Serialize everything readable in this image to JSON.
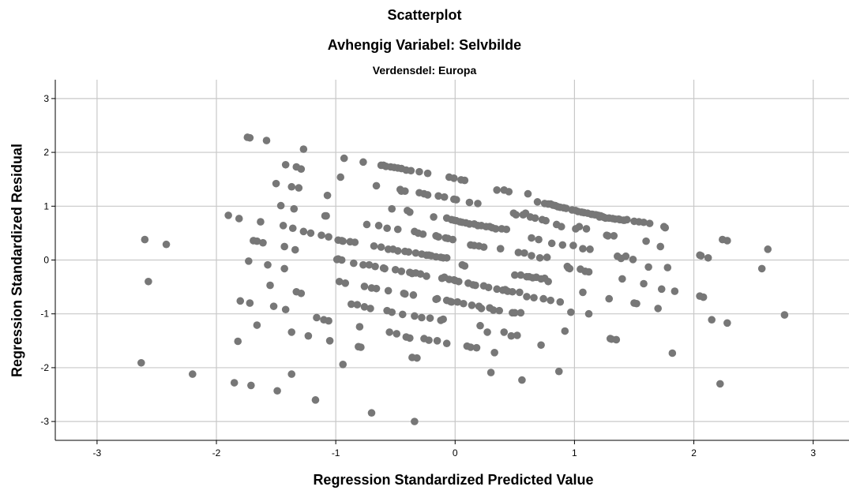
{
  "chart_data": {
    "type": "scatter",
    "title": "Scatterplot",
    "subtitle": "Avhengig Variabel: Selvbilde",
    "subtitle2": "Verdensdel: Europa",
    "xlabel": "Regression Standardized Predicted Value",
    "ylabel": "Regression Standardized Residual",
    "xlim": [
      -3.35,
      3.3
    ],
    "ylim": [
      -3.35,
      3.35
    ],
    "xticks": [
      -3,
      -2,
      -1,
      0,
      1,
      2,
      3
    ],
    "yticks": [
      -3,
      -2,
      -1,
      0,
      1,
      2,
      3
    ],
    "grid": true,
    "point_color": "#777777",
    "gridline_color": "#c8c8c8",
    "points": [
      [
        -2.63,
        -1.91
      ],
      [
        -2.6,
        0.38
      ],
      [
        -2.57,
        -0.4
      ],
      [
        -2.42,
        0.29
      ],
      [
        -2.2,
        -2.12
      ],
      [
        -1.9,
        0.83
      ],
      [
        -1.85,
        -2.28
      ],
      [
        -1.82,
        -1.51
      ],
      [
        -1.81,
        0.77
      ],
      [
        -1.8,
        -0.76
      ],
      [
        -1.74,
        2.28
      ],
      [
        -1.72,
        2.27
      ],
      [
        -1.73,
        -0.02
      ],
      [
        -1.72,
        -0.8
      ],
      [
        -1.71,
        -2.33
      ],
      [
        -1.69,
        0.36
      ],
      [
        -1.66,
        0.35
      ],
      [
        -1.66,
        -1.21
      ],
      [
        -1.63,
        0.71
      ],
      [
        -1.61,
        0.32
      ],
      [
        -1.58,
        2.22
      ],
      [
        -1.57,
        -0.09
      ],
      [
        -1.55,
        -0.47
      ],
      [
        -1.52,
        -0.86
      ],
      [
        -1.5,
        1.42
      ],
      [
        -1.49,
        -2.43
      ],
      [
        -1.46,
        1.01
      ],
      [
        -1.44,
        0.64
      ],
      [
        -1.43,
        0.25
      ],
      [
        -1.43,
        -0.16
      ],
      [
        -1.42,
        -0.92
      ],
      [
        -1.42,
        1.77
      ],
      [
        -1.36,
        0.59
      ],
      [
        -1.37,
        1.36
      ],
      [
        -1.37,
        -2.12
      ],
      [
        -1.37,
        -1.34
      ],
      [
        -1.35,
        0.95
      ],
      [
        -1.34,
        0.19
      ],
      [
        -1.33,
        1.73
      ],
      [
        -1.33,
        -0.59
      ],
      [
        -1.31,
        1.34
      ],
      [
        -1.29,
        -0.62
      ],
      [
        -1.29,
        1.69
      ],
      [
        -1.27,
        2.06
      ],
      [
        -1.27,
        0.53
      ],
      [
        -1.23,
        -1.41
      ],
      [
        -1.21,
        0.5
      ],
      [
        -1.17,
        -2.6
      ],
      [
        -1.16,
        -1.07
      ],
      [
        -1.12,
        0.46
      ],
      [
        -1.1,
        -1.11
      ],
      [
        -1.09,
        0.82
      ],
      [
        -1.08,
        0.82
      ],
      [
        -1.07,
        1.2
      ],
      [
        -1.06,
        -1.13
      ],
      [
        -1.05,
        -1.5
      ],
      [
        -1.06,
        0.43
      ],
      [
        -0.99,
        0.01
      ],
      [
        -0.98,
        0.02
      ],
      [
        -0.98,
        0.37
      ],
      [
        -0.97,
        -0.4
      ],
      [
        -0.96,
        1.54
      ],
      [
        -0.95,
        0.36
      ],
      [
        -0.95,
        -0.0
      ],
      [
        -0.94,
        -1.94
      ],
      [
        -0.94,
        0.35
      ],
      [
        -0.93,
        1.89
      ],
      [
        -0.92,
        -0.43
      ],
      [
        -0.88,
        0.34
      ],
      [
        -0.87,
        -0.82
      ],
      [
        -0.85,
        -0.06
      ],
      [
        -0.84,
        0.33
      ],
      [
        -0.82,
        -0.83
      ],
      [
        -0.81,
        -1.61
      ],
      [
        -0.8,
        -1.24
      ],
      [
        -0.79,
        -1.62
      ],
      [
        -0.77,
        1.82
      ],
      [
        -0.77,
        -0.09
      ],
      [
        -0.76,
        -0.87
      ],
      [
        -0.76,
        -0.49
      ],
      [
        -0.74,
        0.66
      ],
      [
        -0.72,
        -0.09
      ],
      [
        -0.7,
        -2.84
      ],
      [
        -0.71,
        -0.9
      ],
      [
        -0.7,
        -0.52
      ],
      [
        -0.68,
        0.26
      ],
      [
        -0.67,
        -0.12
      ],
      [
        -0.66,
        1.38
      ],
      [
        -0.66,
        -0.53
      ],
      [
        -0.64,
        0.64
      ],
      [
        -0.62,
        0.24
      ],
      [
        -0.62,
        1.76
      ],
      [
        -0.6,
        1.76
      ],
      [
        -0.6,
        -0.15
      ],
      [
        -0.59,
        -0.16
      ],
      [
        -0.58,
        1.74
      ],
      [
        -0.57,
        0.59
      ],
      [
        -0.57,
        -0.94
      ],
      [
        -0.56,
        -0.57
      ],
      [
        -0.56,
        0.2
      ],
      [
        -0.55,
        -1.34
      ],
      [
        -0.54,
        1.73
      ],
      [
        -0.53,
        -0.97
      ],
      [
        -0.53,
        0.95
      ],
      [
        -0.52,
        0.2
      ],
      [
        -0.51,
        1.72
      ],
      [
        -0.5,
        -0.18
      ],
      [
        -0.49,
        -1.37
      ],
      [
        -0.48,
        1.71
      ],
      [
        -0.48,
        0.57
      ],
      [
        -0.48,
        0.17
      ],
      [
        -0.46,
        1.31
      ],
      [
        -0.45,
        1.28
      ],
      [
        -0.45,
        1.7
      ],
      [
        -0.45,
        -0.21
      ],
      [
        -0.44,
        -1.01
      ],
      [
        -0.43,
        -0.62
      ],
      [
        -0.42,
        0.16
      ],
      [
        -0.42,
        -0.63
      ],
      [
        -0.42,
        1.28
      ],
      [
        -0.41,
        1.67
      ],
      [
        -0.41,
        -1.43
      ],
      [
        -0.4,
        0.92
      ],
      [
        -0.39,
        0.15
      ],
      [
        -0.38,
        -1.45
      ],
      [
        -0.38,
        0.89
      ],
      [
        -0.38,
        -0.23
      ],
      [
        -0.37,
        1.66
      ],
      [
        -0.36,
        -0.25
      ],
      [
        -0.36,
        -1.81
      ],
      [
        -0.35,
        -0.65
      ],
      [
        -0.34,
        0.53
      ],
      [
        -0.34,
        -1.04
      ],
      [
        -0.34,
        -3.0
      ],
      [
        -0.33,
        -0.24
      ],
      [
        -0.33,
        0.13
      ],
      [
        -0.32,
        -1.82
      ],
      [
        -0.31,
        0.5
      ],
      [
        -0.3,
        1.25
      ],
      [
        -0.3,
        1.64
      ],
      [
        -0.29,
        -0.26
      ],
      [
        -0.28,
        0.11
      ],
      [
        -0.28,
        -1.07
      ],
      [
        -0.27,
        0.48
      ],
      [
        -0.26,
        -1.46
      ],
      [
        -0.26,
        1.23
      ],
      [
        -0.24,
        -0.3
      ],
      [
        -0.24,
        0.09
      ],
      [
        -0.23,
        1.21
      ],
      [
        -0.23,
        1.61
      ],
      [
        -0.22,
        -1.49
      ],
      [
        -0.22,
        0.09
      ],
      [
        -0.21,
        -1.08
      ],
      [
        -0.2,
        0.08
      ],
      [
        -0.18,
        0.8
      ],
      [
        -0.16,
        0.45
      ],
      [
        -0.16,
        -0.73
      ],
      [
        -0.16,
        0.06
      ],
      [
        -0.15,
        -1.5
      ],
      [
        -0.15,
        -0.72
      ],
      [
        -0.14,
        0.43
      ],
      [
        -0.14,
        1.19
      ],
      [
        -0.12,
        0.05
      ],
      [
        -0.12,
        -1.12
      ],
      [
        -0.11,
        -0.34
      ],
      [
        -0.1,
        0.04
      ],
      [
        -0.1,
        -1.1
      ],
      [
        -0.09,
        -0.32
      ],
      [
        -0.09,
        1.17
      ],
      [
        -0.08,
        0.41
      ],
      [
        -0.07,
        -0.75
      ],
      [
        -0.07,
        0.78
      ],
      [
        -0.07,
        -1.55
      ],
      [
        -0.07,
        0.04
      ],
      [
        -0.06,
        0.4
      ],
      [
        -0.05,
        -0.36
      ],
      [
        -0.05,
        1.54
      ],
      [
        -0.04,
        -0.77
      ],
      [
        -0.03,
        0.75
      ],
      [
        -0.03,
        -0.78
      ],
      [
        -0.02,
        0.38
      ],
      [
        -0.01,
        0.74
      ],
      [
        -0.01,
        -0.37
      ],
      [
        -0.01,
        1.52
      ],
      [
        -0.01,
        1.13
      ],
      [
        0.0,
        -0.38
      ],
      [
        0.01,
        0.73
      ],
      [
        0.01,
        1.12
      ],
      [
        0.02,
        -0.78
      ],
      [
        0.03,
        -0.4
      ],
      [
        0.04,
        0.71
      ],
      [
        0.05,
        1.49
      ],
      [
        0.06,
        0.7
      ],
      [
        0.06,
        -0.09
      ],
      [
        0.07,
        -0.81
      ],
      [
        0.08,
        1.48
      ],
      [
        0.08,
        -0.11
      ],
      [
        0.09,
        0.69
      ],
      [
        0.1,
        -1.6
      ],
      [
        0.11,
        -0.43
      ],
      [
        0.12,
        1.07
      ],
      [
        0.12,
        0.67
      ],
      [
        0.13,
        -1.62
      ],
      [
        0.13,
        0.28
      ],
      [
        0.14,
        -0.84
      ],
      [
        0.15,
        -0.46
      ],
      [
        0.16,
        0.67
      ],
      [
        0.16,
        0.27
      ],
      [
        0.17,
        -0.47
      ],
      [
        0.18,
        -1.63
      ],
      [
        0.19,
        1.05
      ],
      [
        0.19,
        0.64
      ],
      [
        0.2,
        -0.86
      ],
      [
        0.2,
        0.26
      ],
      [
        0.21,
        -1.22
      ],
      [
        0.22,
        0.64
      ],
      [
        0.22,
        -0.9
      ],
      [
        0.24,
        0.24
      ],
      [
        0.24,
        -0.48
      ],
      [
        0.26,
        0.62
      ],
      [
        0.27,
        -1.34
      ],
      [
        0.28,
        -0.51
      ],
      [
        0.29,
        0.62
      ],
      [
        0.29,
        -0.89
      ],
      [
        0.3,
        -2.09
      ],
      [
        0.31,
        0.6
      ],
      [
        0.32,
        -0.93
      ],
      [
        0.33,
        -1.72
      ],
      [
        0.34,
        0.58
      ],
      [
        0.35,
        -0.54
      ],
      [
        0.35,
        1.3
      ],
      [
        0.37,
        -0.94
      ],
      [
        0.38,
        0.21
      ],
      [
        0.39,
        0.58
      ],
      [
        0.4,
        -0.56
      ],
      [
        0.41,
        1.3
      ],
      [
        0.41,
        -1.34
      ],
      [
        0.42,
        -0.55
      ],
      [
        0.43,
        0.57
      ],
      [
        0.44,
        -0.58
      ],
      [
        0.45,
        1.27
      ],
      [
        0.47,
        -1.41
      ],
      [
        0.48,
        -0.98
      ],
      [
        0.48,
        -0.59
      ],
      [
        0.49,
        0.87
      ],
      [
        0.5,
        -0.28
      ],
      [
        0.5,
        -0.98
      ],
      [
        0.51,
        0.84
      ],
      [
        0.52,
        -1.4
      ],
      [
        0.53,
        0.14
      ],
      [
        0.54,
        -0.6
      ],
      [
        0.55,
        -0.98
      ],
      [
        0.55,
        -0.28
      ],
      [
        0.56,
        -2.23
      ],
      [
        0.57,
        0.84
      ],
      [
        0.58,
        0.13
      ],
      [
        0.59,
        0.87
      ],
      [
        0.6,
        -0.31
      ],
      [
        0.6,
        -0.68
      ],
      [
        0.61,
        1.23
      ],
      [
        0.62,
        -0.31
      ],
      [
        0.63,
        0.8
      ],
      [
        0.64,
        0.41
      ],
      [
        0.64,
        0.08
      ],
      [
        0.65,
        -0.33
      ],
      [
        0.66,
        -0.7
      ],
      [
        0.67,
        0.78
      ],
      [
        0.68,
        -0.32
      ],
      [
        0.69,
        1.08
      ],
      [
        0.7,
        0.38
      ],
      [
        0.71,
        0.04
      ],
      [
        0.72,
        -0.35
      ],
      [
        0.72,
        -1.58
      ],
      [
        0.73,
        0.75
      ],
      [
        0.74,
        -0.72
      ],
      [
        0.75,
        -0.34
      ],
      [
        0.75,
        1.05
      ],
      [
        0.76,
        0.73
      ],
      [
        0.77,
        0.05
      ],
      [
        0.78,
        1.04
      ],
      [
        0.78,
        -0.4
      ],
      [
        0.8,
        1.04
      ],
      [
        0.8,
        -0.75
      ],
      [
        0.81,
        0.31
      ],
      [
        0.82,
        1.02
      ],
      [
        0.84,
        1.01
      ],
      [
        0.85,
        0.66
      ],
      [
        0.86,
        0.99
      ],
      [
        0.87,
        -2.07
      ],
      [
        0.88,
        0.98
      ],
      [
        0.88,
        -0.78
      ],
      [
        0.89,
        0.62
      ],
      [
        0.9,
        0.28
      ],
      [
        0.91,
        0.97
      ],
      [
        0.92,
        -1.32
      ],
      [
        0.93,
        0.96
      ],
      [
        0.94,
        -0.12
      ],
      [
        0.95,
        -0.15
      ],
      [
        0.96,
        -0.16
      ],
      [
        0.97,
        -0.97
      ],
      [
        0.98,
        0.93
      ],
      [
        0.99,
        0.27
      ],
      [
        1.01,
        0.58
      ],
      [
        1.01,
        0.92
      ],
      [
        1.03,
        0.9
      ],
      [
        1.04,
        0.62
      ],
      [
        1.05,
        -0.17
      ],
      [
        1.06,
        0.89
      ],
      [
        1.07,
        0.21
      ],
      [
        1.07,
        -0.6
      ],
      [
        1.08,
        0.88
      ],
      [
        1.09,
        -0.21
      ],
      [
        1.1,
        0.58
      ],
      [
        1.11,
        0.87
      ],
      [
        1.12,
        -1.0
      ],
      [
        1.12,
        -0.22
      ],
      [
        1.13,
        0.2
      ],
      [
        1.14,
        0.85
      ],
      [
        1.15,
        0.85
      ],
      [
        1.17,
        0.84
      ],
      [
        1.18,
        0.84
      ],
      [
        1.2,
        0.83
      ],
      [
        1.21,
        0.8
      ],
      [
        1.22,
        0.82
      ],
      [
        1.23,
        0.81
      ],
      [
        1.24,
        0.8
      ],
      [
        1.25,
        0.79
      ],
      [
        1.26,
        0.78
      ],
      [
        1.27,
        0.46
      ],
      [
        1.28,
        0.45
      ],
      [
        1.29,
        -0.72
      ],
      [
        1.29,
        0.78
      ],
      [
        1.3,
        -1.46
      ],
      [
        1.31,
        -1.47
      ],
      [
        1.32,
        0.77
      ],
      [
        1.33,
        0.45
      ],
      [
        1.34,
        0.76
      ],
      [
        1.35,
        -1.48
      ],
      [
        1.36,
        0.07
      ],
      [
        1.37,
        0.76
      ],
      [
        1.38,
        0.75
      ],
      [
        1.39,
        0.03
      ],
      [
        1.4,
        -0.35
      ],
      [
        1.41,
        0.74
      ],
      [
        1.42,
        0.74
      ],
      [
        1.43,
        0.07
      ],
      [
        1.44,
        0.75
      ],
      [
        1.49,
        0.01
      ],
      [
        1.5,
        -0.8
      ],
      [
        1.5,
        0.72
      ],
      [
        1.52,
        -0.81
      ],
      [
        1.54,
        0.71
      ],
      [
        1.58,
        0.7
      ],
      [
        1.58,
        -0.44
      ],
      [
        1.6,
        0.35
      ],
      [
        1.62,
        -0.13
      ],
      [
        1.63,
        0.68
      ],
      [
        1.7,
        -0.9
      ],
      [
        1.72,
        0.25
      ],
      [
        1.73,
        -0.54
      ],
      [
        1.75,
        0.62
      ],
      [
        1.76,
        0.6
      ],
      [
        1.78,
        -0.14
      ],
      [
        1.82,
        -1.73
      ],
      [
        1.84,
        -0.58
      ],
      [
        2.05,
        0.09
      ],
      [
        2.06,
        0.08
      ],
      [
        2.05,
        -0.67
      ],
      [
        2.08,
        -0.69
      ],
      [
        2.12,
        0.04
      ],
      [
        2.15,
        -1.11
      ],
      [
        2.22,
        -2.3
      ],
      [
        2.24,
        0.38
      ],
      [
        2.28,
        0.36
      ],
      [
        2.28,
        -1.17
      ],
      [
        2.57,
        -0.16
      ],
      [
        2.62,
        0.2
      ],
      [
        2.76,
        -1.02
      ]
    ]
  }
}
